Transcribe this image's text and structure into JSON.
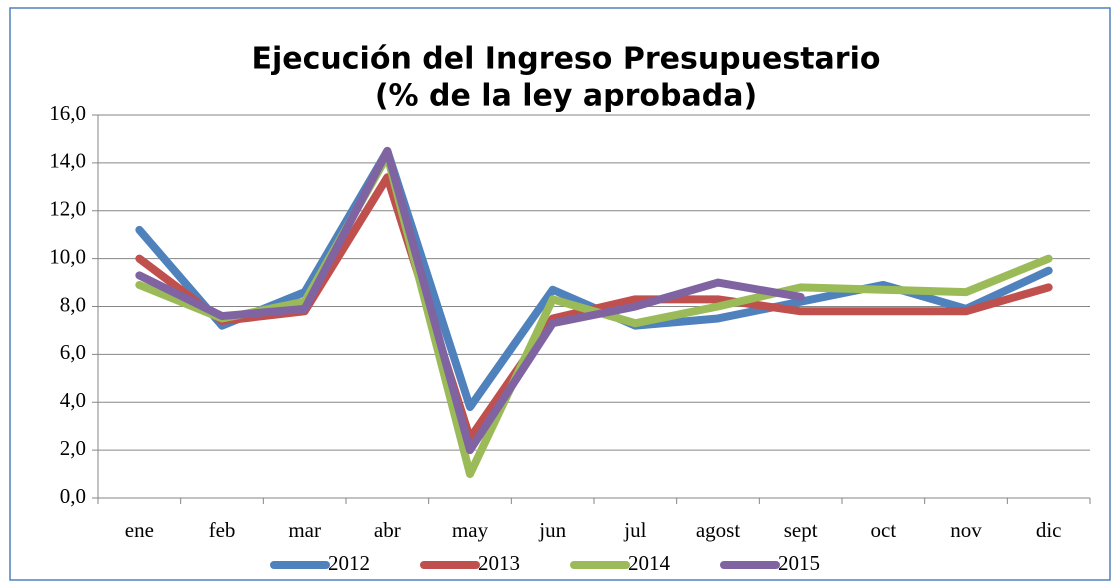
{
  "chart_data": {
    "type": "line",
    "title": [
      "Ejecución del Ingreso Presupuestario",
      "(% de la ley aprobada)"
    ],
    "categories": [
      "ene",
      "feb",
      "mar",
      "abr",
      "may",
      "jun",
      "jul",
      "agost",
      "sept",
      "oct",
      "nov",
      "dic"
    ],
    "series": [
      {
        "name": "2012",
        "color": "#4f81bd",
        "values": [
          11.2,
          7.2,
          8.6,
          14.5,
          3.8,
          8.7,
          7.2,
          7.5,
          8.2,
          8.9,
          7.9,
          9.5
        ]
      },
      {
        "name": "2013",
        "color": "#c0504d",
        "values": [
          10.0,
          7.4,
          7.8,
          13.4,
          2.5,
          7.5,
          8.3,
          8.3,
          7.8,
          7.8,
          7.8,
          8.8
        ]
      },
      {
        "name": "2014",
        "color": "#9bbb59",
        "values": [
          8.9,
          7.5,
          8.2,
          14.3,
          1.0,
          8.3,
          7.3,
          8.0,
          8.8,
          8.7,
          8.6,
          10.0
        ]
      },
      {
        "name": "2015",
        "color": "#8064a2",
        "values": [
          9.3,
          7.6,
          7.9,
          14.5,
          2.0,
          7.3,
          8.0,
          9.0,
          8.4,
          null,
          null,
          null
        ]
      }
    ],
    "ylim": [
      0,
      16
    ],
    "yticks": [
      {
        "value": 0,
        "label": "0,0"
      },
      {
        "value": 2,
        "label": "2,0"
      },
      {
        "value": 4,
        "label": "4,0"
      },
      {
        "value": 6,
        "label": "6,0"
      },
      {
        "value": 8,
        "label": "8,0"
      },
      {
        "value": 10,
        "label": "10,0"
      },
      {
        "value": 12,
        "label": "12,0"
      },
      {
        "value": 14,
        "label": "14,0"
      },
      {
        "value": 16,
        "label": "16,0"
      }
    ],
    "grid": true,
    "legend": "bottom"
  }
}
